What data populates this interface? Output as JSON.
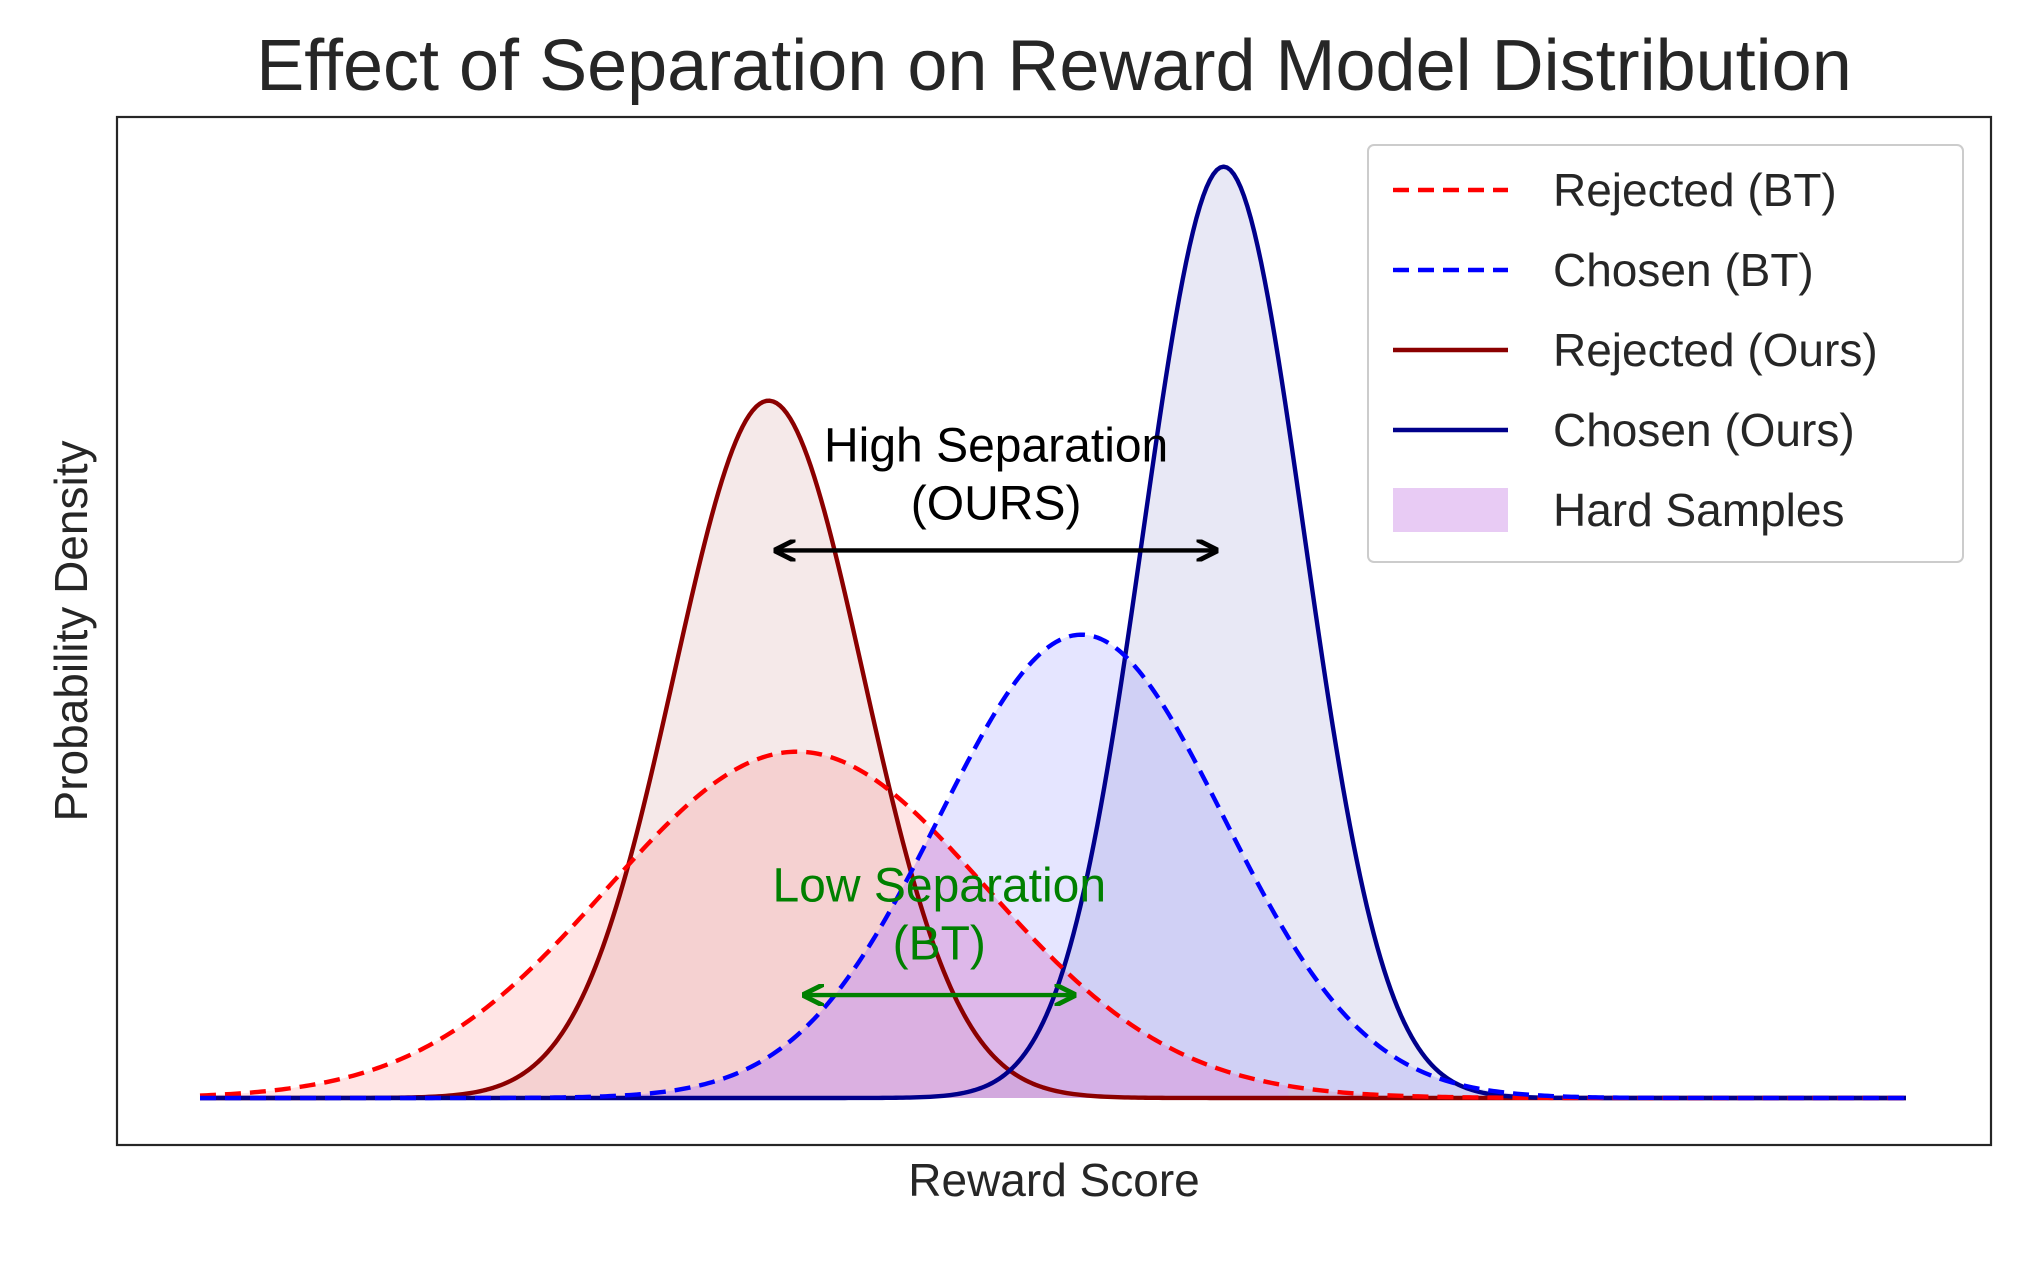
{
  "chart_data": {
    "type": "line",
    "title": "Effect of Separation on Reward Model Distribution",
    "xlabel": "Reward Score",
    "ylabel": "Probability Density",
    "xlim": [
      -6,
      12
    ],
    "ylim": [
      0,
      1.0
    ],
    "grid": false,
    "ticks_visible": false,
    "legend_position": "top-right",
    "series": [
      {
        "name": "Rejected (BT)",
        "color": "#ff0000",
        "fill": "#ff0000",
        "line_style": "dashed",
        "distribution": "normal",
        "mean": 0.3,
        "std": 2.0,
        "peak_density": 0.37
      },
      {
        "name": "Chosen (BT)",
        "color": "#0000ff",
        "fill": "#0000ff",
        "line_style": "dashed",
        "distribution": "normal",
        "mean": 3.3,
        "std": 1.5,
        "peak_density": 0.495
      },
      {
        "name": "Rejected (Ours)",
        "color": "#8b0000",
        "fill": "#8b0000",
        "line_style": "solid",
        "distribution": "normal",
        "mean": 0.0,
        "std": 1.0,
        "peak_density": 0.745
      },
      {
        "name": "Chosen (Ours)",
        "color": "#00008b",
        "fill": "#00008b",
        "line_style": "solid",
        "distribution": "normal",
        "mean": 4.8,
        "std": 0.85,
        "peak_density": 0.995
      },
      {
        "name": "Hard Samples",
        "color": "#9b30d0",
        "fill": "#d8a8ec",
        "line_style": "area"
      }
    ],
    "annotations": [
      {
        "text_lines": [
          "High Separation",
          "(OURS)"
        ],
        "color": "#000000",
        "arrow_from": [
          0.1,
          0.585
        ],
        "arrow_to": [
          4.7,
          0.585
        ],
        "text_x": 2.4,
        "text_y": 0.68
      },
      {
        "text_lines": [
          "Low Separation",
          "(BT)"
        ],
        "color": "#008000",
        "arrow_from": [
          0.4,
          0.11
        ],
        "arrow_to": [
          3.2,
          0.11
        ],
        "text_x": 1.8,
        "text_y": 0.21
      }
    ]
  }
}
